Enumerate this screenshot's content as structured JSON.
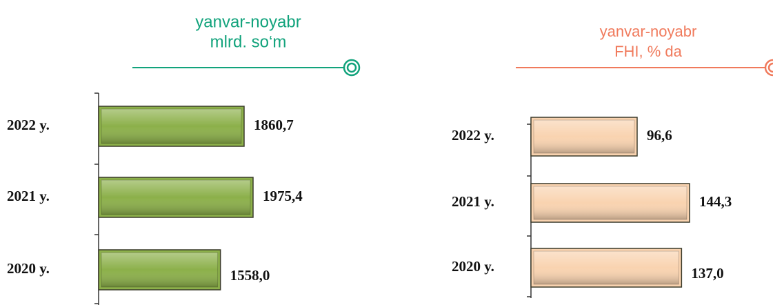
{
  "chart_data": [
    {
      "type": "bar",
      "orientation": "horizontal",
      "title": "yanvar-noyabr",
      "subtitle": "mlrd. so‘m",
      "categories": [
        "2022 y.",
        "2021 y.",
        "2020 y."
      ],
      "values": [
        1860.7,
        1975.4,
        1558.0
      ],
      "value_labels": [
        "1860,7",
        "1975,4",
        "1558,0"
      ],
      "color": "#8cb04a",
      "title_color": "#12a37c"
    },
    {
      "type": "bar",
      "orientation": "horizontal",
      "title": "yanvar-noyabr",
      "subtitle": "FHI, % da",
      "categories": [
        "2022 y.",
        "2021 y.",
        "2020 y."
      ],
      "values": [
        96.6,
        144.3,
        137.0
      ],
      "value_labels": [
        "96,6",
        "144,3",
        "137,0"
      ],
      "color": "#f9d3b0",
      "title_color": "#f07a5c"
    }
  ]
}
